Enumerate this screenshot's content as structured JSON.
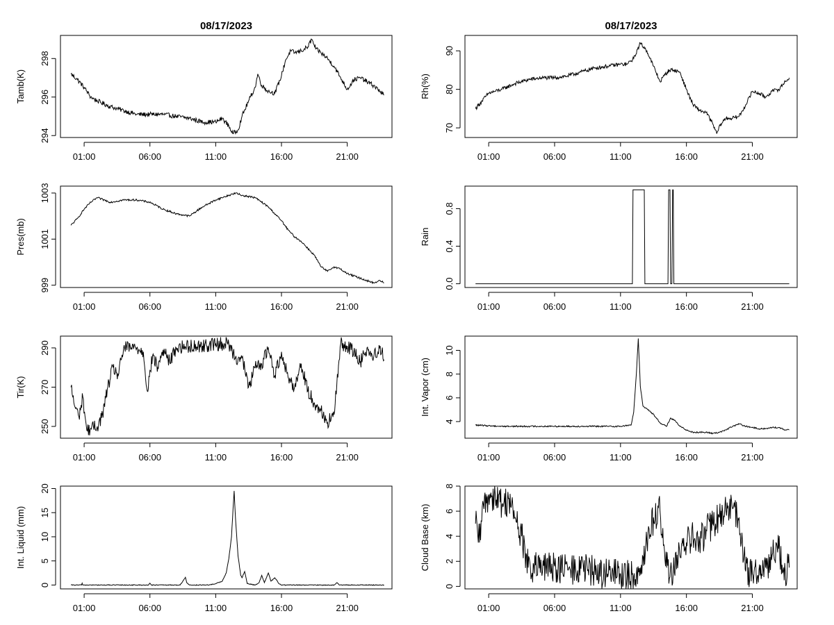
{
  "page": {
    "background": "#ffffff",
    "ink": "#000000"
  },
  "chart_data": [
    {
      "type": "line",
      "title": "08/17/2023",
      "ylabel": "Tamb(K)",
      "xlim": [
        -0.8,
        24.4
      ],
      "ylim": [
        293.9,
        299.2
      ],
      "yticks": [
        294,
        296,
        298
      ],
      "xticks": [
        1,
        6,
        11,
        16,
        21
      ],
      "xtick_labels": [
        "01:00",
        "06:00",
        "11:00",
        "16:00",
        "21:00"
      ],
      "x": [
        0,
        0.5,
        1,
        1.5,
        2,
        3,
        4,
        5,
        6,
        7,
        8,
        9,
        10,
        11,
        11.5,
        12,
        12.3,
        12.7,
        13,
        13.5,
        14,
        14.2,
        14.5,
        15,
        15.5,
        16,
        16.3,
        16.7,
        17,
        17.5,
        18,
        18.3,
        18.6,
        19,
        19.5,
        20,
        20.5,
        21,
        21.5,
        22,
        22.5,
        23,
        23.5,
        23.8
      ],
      "values": [
        297.2,
        296.9,
        296.5,
        296.0,
        295.8,
        295.5,
        295.3,
        295.1,
        295.1,
        295.1,
        295.0,
        294.9,
        294.7,
        294.7,
        294.9,
        294.5,
        294.1,
        294.3,
        295.0,
        295.8,
        296.5,
        297.2,
        296.6,
        296.3,
        296.2,
        297.1,
        297.9,
        298.4,
        298.3,
        298.4,
        298.6,
        299.0,
        298.5,
        298.3,
        298.0,
        297.6,
        297.0,
        296.4,
        296.9,
        297.0,
        296.8,
        296.6,
        296.3,
        296.1
      ],
      "noise": 0.12
    },
    {
      "type": "line",
      "title": "08/17/2023",
      "ylabel": "Rh(%)",
      "xlim": [
        -0.8,
        24.4
      ],
      "ylim": [
        67.5,
        94.0
      ],
      "yticks": [
        70,
        80,
        90
      ],
      "xticks": [
        1,
        6,
        11,
        16,
        21
      ],
      "xtick_labels": [
        "01:00",
        "06:00",
        "11:00",
        "16:00",
        "21:00"
      ],
      "x": [
        0,
        0.5,
        1,
        1.5,
        2,
        3,
        4,
        5,
        6,
        7,
        8,
        9,
        10,
        11,
        11.5,
        12,
        12.5,
        13,
        13.5,
        14,
        14.3,
        14.7,
        15,
        15.5,
        16,
        16.5,
        17,
        17.5,
        18,
        18.3,
        18.6,
        19,
        19.5,
        20,
        20.5,
        21,
        21.5,
        22,
        22.5,
        23,
        23.5,
        23.8
      ],
      "values": [
        75.0,
        77.0,
        79.0,
        79.5,
        80.0,
        81.5,
        82.5,
        83.0,
        83.0,
        83.5,
        84.5,
        85.5,
        86.0,
        86.5,
        86.5,
        88.0,
        92.0,
        90.0,
        86.0,
        82.0,
        83.5,
        85.0,
        85.0,
        84.5,
        80.0,
        76.0,
        74.5,
        74.0,
        71.0,
        68.5,
        71.0,
        72.5,
        72.5,
        73.0,
        76.0,
        79.5,
        79.0,
        78.0,
        79.5,
        80.0,
        82.0,
        83.0
      ],
      "noise": 0.5
    },
    {
      "type": "line",
      "title": "",
      "ylabel": "Pres(mb)",
      "xlim": [
        -0.8,
        24.4
      ],
      "ylim": [
        998.9,
        1003.3
      ],
      "yticks": [
        999,
        1001,
        1003
      ],
      "xticks": [
        1,
        6,
        11,
        16,
        21
      ],
      "xtick_labels": [
        "01:00",
        "06:00",
        "11:00",
        "16:00",
        "21:00"
      ],
      "x": [
        0,
        0.5,
        1,
        1.5,
        2,
        3,
        4,
        5,
        6,
        7,
        8,
        9,
        10,
        11,
        12,
        12.5,
        13,
        14,
        15,
        16,
        16.5,
        17,
        17.5,
        18,
        18.5,
        19,
        19.5,
        20,
        20.5,
        21,
        22,
        22.5,
        23,
        23.5,
        23.8
      ],
      "values": [
        1001.6,
        1001.9,
        1002.3,
        1002.6,
        1002.8,
        1002.6,
        1002.7,
        1002.7,
        1002.6,
        1002.3,
        1002.1,
        1002.0,
        1002.4,
        1002.7,
        1002.9,
        1003.0,
        1002.9,
        1002.8,
        1002.4,
        1001.8,
        1001.4,
        1001.1,
        1000.9,
        1000.6,
        1000.3,
        999.8,
        999.6,
        999.8,
        999.7,
        999.5,
        999.3,
        999.2,
        999.1,
        999.2,
        999.1
      ],
      "noise": 0.04
    },
    {
      "type": "step",
      "title": "",
      "ylabel": "Rain",
      "xlim": [
        -0.8,
        24.4
      ],
      "ylim": [
        -0.04,
        1.04
      ],
      "yticks": [
        0.0,
        0.4,
        0.8
      ],
      "ytick_labels": [
        "0.0",
        "0.4",
        "0.8"
      ],
      "xticks": [
        1,
        6,
        11,
        16,
        21
      ],
      "xtick_labels": [
        "01:00",
        "06:00",
        "11:00",
        "16:00",
        "21:00"
      ],
      "x": [
        0,
        11.9,
        11.95,
        12.8,
        12.85,
        14.6,
        14.65,
        14.75,
        14.8,
        14.9,
        14.95,
        15.0,
        15.05,
        23.8
      ],
      "values": [
        0,
        0,
        1,
        1,
        0,
        0,
        1,
        1,
        0,
        0,
        1,
        1,
        0,
        0
      ]
    },
    {
      "type": "line",
      "title": "",
      "ylabel": "Tir(K)",
      "xlim": [
        -0.8,
        24.4
      ],
      "ylim": [
        244,
        296
      ],
      "yticks": [
        250,
        270,
        290
      ],
      "xticks": [
        1,
        6,
        11,
        16,
        21
      ],
      "xtick_labels": [
        "01:00",
        "06:00",
        "11:00",
        "16:00",
        "21:00"
      ],
      "x": [
        0,
        0.3,
        0.6,
        0.9,
        1.2,
        1.5,
        2.0,
        2.4,
        2.8,
        3.2,
        3.6,
        4.0,
        5.0,
        5.5,
        5.8,
        6.2,
        6.6,
        7.0,
        7.5,
        8.0,
        9.0,
        10.0,
        11.0,
        12.0,
        12.5,
        13.0,
        13.5,
        14.0,
        14.5,
        15.0,
        15.5,
        16.0,
        16.5,
        17.0,
        17.5,
        18.0,
        18.5,
        19.0,
        19.5,
        20.0,
        20.5,
        21.0,
        21.5,
        22.0,
        22.5,
        23.0,
        23.5,
        23.8
      ],
      "values": [
        270,
        260,
        255,
        265,
        248,
        249,
        250,
        256,
        270,
        280,
        276,
        290,
        290,
        288,
        268,
        286,
        280,
        289,
        283,
        290,
        291,
        291,
        292,
        292,
        285,
        285,
        270,
        280,
        282,
        290,
        276,
        288,
        275,
        270,
        282,
        268,
        262,
        258,
        252,
        256,
        292,
        291,
        288,
        283,
        290,
        285,
        291,
        284
      ],
      "noise": 3.5
    },
    {
      "type": "line",
      "title": "",
      "ylabel": "Int. Vapor (cm)",
      "xlim": [
        -0.8,
        24.4
      ],
      "ylim": [
        2.6,
        11.2
      ],
      "yticks": [
        4,
        6,
        8,
        10
      ],
      "xticks": [
        1,
        6,
        11,
        16,
        21
      ],
      "xtick_labels": [
        "01:00",
        "06:00",
        "11:00",
        "16:00",
        "21:00"
      ],
      "x": [
        0,
        2,
        4,
        6,
        8,
        10,
        11,
        11.8,
        12.0,
        12.2,
        12.35,
        12.5,
        12.7,
        13.0,
        13.5,
        14.0,
        14.5,
        14.8,
        15.2,
        15.5,
        16.0,
        16.5,
        17.0,
        17.5,
        18.0,
        18.5,
        19.0,
        19.5,
        20.0,
        20.5,
        21.0,
        21.5,
        22.0,
        22.5,
        23.0,
        23.5,
        23.8
      ],
      "values": [
        3.7,
        3.6,
        3.6,
        3.6,
        3.6,
        3.6,
        3.6,
        3.7,
        4.8,
        8.0,
        11.0,
        7.0,
        5.3,
        5.1,
        4.6,
        3.9,
        3.6,
        4.3,
        4.0,
        3.6,
        3.3,
        3.1,
        3.1,
        3.1,
        3.0,
        3.1,
        3.3,
        3.6,
        3.8,
        3.6,
        3.5,
        3.4,
        3.4,
        3.5,
        3.5,
        3.3,
        3.3
      ],
      "noise": 0.06
    },
    {
      "type": "line",
      "title": "",
      "ylabel": "Int. Liquid (mm)",
      "xlim": [
        -0.8,
        24.4
      ],
      "ylim": [
        -0.8,
        20.5
      ],
      "yticks": [
        0,
        5,
        10,
        15,
        20
      ],
      "xticks": [
        1,
        6,
        11,
        16,
        21
      ],
      "xtick_labels": [
        "01:00",
        "06:00",
        "11:00",
        "16:00",
        "21:00"
      ],
      "x": [
        0,
        0.8,
        0.85,
        0.9,
        5,
        5.9,
        6.0,
        6.1,
        8.3,
        8.6,
        8.7,
        8.8,
        9.0,
        10.5,
        11.0,
        11.5,
        11.8,
        12.0,
        12.2,
        12.4,
        12.5,
        12.7,
        12.9,
        13.0,
        13.2,
        13.4,
        14.0,
        14.3,
        14.5,
        14.7,
        15.0,
        15.2,
        15.5,
        15.8,
        16.0,
        20.0,
        20.2,
        20.4,
        23.8
      ],
      "values": [
        0,
        0,
        0.4,
        0,
        0,
        0,
        0.4,
        0,
        0,
        1.2,
        1.6,
        0.5,
        0,
        0,
        0.3,
        0.8,
        2.5,
        5.5,
        10.0,
        19.5,
        14.0,
        6.0,
        2.0,
        1.5,
        2.8,
        0.3,
        0,
        0.5,
        2.0,
        0.5,
        2.5,
        0.8,
        1.5,
        0.3,
        0,
        0,
        0.5,
        0,
        0
      ],
      "noise": 0.08
    },
    {
      "type": "line",
      "title": "",
      "ylabel": "Cloud Base (km)",
      "xlim": [
        -0.8,
        24.4
      ],
      "ylim": [
        -0.2,
        8.0
      ],
      "yticks": [
        0,
        2,
        4,
        6,
        8
      ],
      "xticks": [
        1,
        6,
        11,
        16,
        21
      ],
      "xtick_labels": [
        "01:00",
        "06:00",
        "11:00",
        "16:00",
        "21:00"
      ],
      "x": [
        0,
        0.3,
        0.6,
        1.0,
        1.5,
        2.0,
        2.5,
        3.0,
        3.5,
        4.0,
        5.0,
        6.0,
        7.0,
        8.0,
        9.0,
        10.0,
        11.0,
        11.5,
        12.0,
        12.5,
        13.0,
        13.5,
        14.0,
        14.5,
        15.0,
        15.5,
        16.0,
        16.5,
        17.0,
        17.5,
        18.0,
        18.5,
        19.0,
        19.5,
        20.0,
        20.5,
        21.0,
        21.5,
        22.0,
        22.5,
        23.0,
        23.5,
        23.8
      ],
      "values": [
        5.0,
        3.5,
        6.5,
        7.2,
        7.3,
        6.5,
        7.0,
        5.5,
        4.0,
        1.5,
        1.4,
        1.6,
        1.3,
        1.4,
        1.2,
        1.0,
        1.0,
        0.8,
        0.8,
        1.5,
        3.5,
        5.5,
        6.0,
        1.5,
        1.2,
        2.5,
        3.5,
        4.0,
        3.5,
        4.5,
        5.0,
        5.5,
        6.0,
        6.2,
        5.5,
        1.2,
        1.0,
        1.3,
        1.5,
        2.5,
        3.0,
        1.2,
        1.5
      ],
      "noise": 1.3
    }
  ]
}
